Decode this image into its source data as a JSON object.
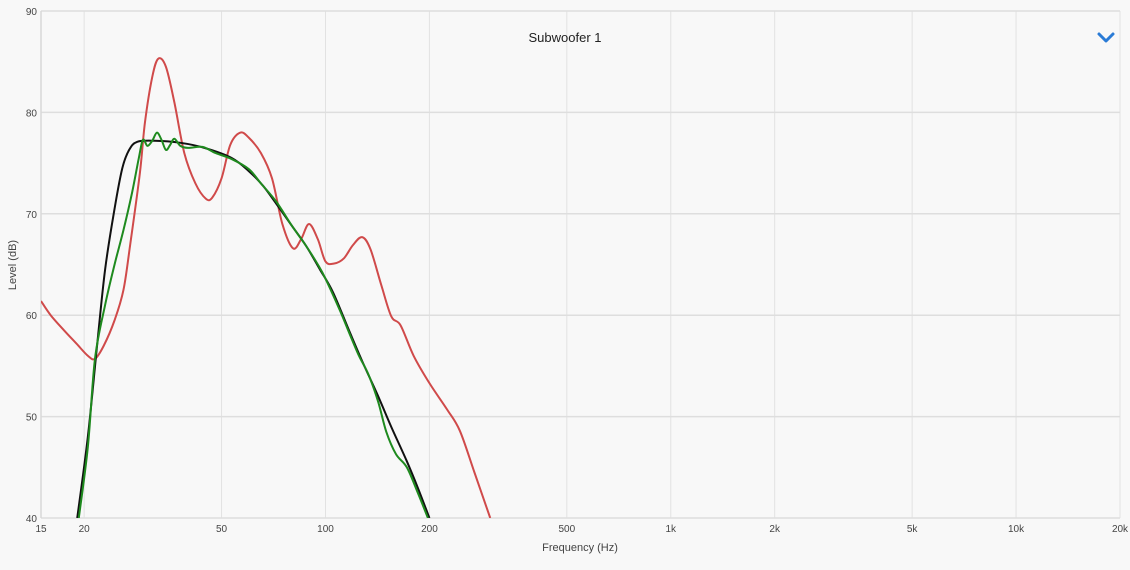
{
  "chart_data": {
    "type": "line",
    "title": "Subwoofer 1",
    "xlabel": "Frequency (Hz)",
    "ylabel": "Level (dB)",
    "xscale": "log",
    "xlim": [
      15,
      20000
    ],
    "ylim": [
      40,
      90
    ],
    "grid": true,
    "x_ticks": [
      {
        "v": 15,
        "label": "15"
      },
      {
        "v": 20,
        "label": "20"
      },
      {
        "v": 50,
        "label": "50"
      },
      {
        "v": 100,
        "label": "100"
      },
      {
        "v": 200,
        "label": "200"
      },
      {
        "v": 500,
        "label": "500"
      },
      {
        "v": 1000,
        "label": "1k"
      },
      {
        "v": 2000,
        "label": "2k"
      },
      {
        "v": 5000,
        "label": "5k"
      },
      {
        "v": 10000,
        "label": "10k"
      },
      {
        "v": 20000,
        "label": "20k"
      }
    ],
    "y_ticks": [
      40,
      50,
      60,
      70,
      80,
      90
    ],
    "series": [
      {
        "color": "#d04a4a",
        "points": [
          [
            15,
            61.4
          ],
          [
            16,
            60
          ],
          [
            17.5,
            58.5
          ],
          [
            19,
            57.2
          ],
          [
            20.5,
            56
          ],
          [
            21.5,
            55.7
          ],
          [
            22.8,
            57
          ],
          [
            24.5,
            59.5
          ],
          [
            26,
            62.5
          ],
          [
            27.2,
            67
          ],
          [
            29,
            74
          ],
          [
            30,
            79
          ],
          [
            31.5,
            83.5
          ],
          [
            32.8,
            85.3
          ],
          [
            34.5,
            84.5
          ],
          [
            36.5,
            81
          ],
          [
            39,
            76
          ],
          [
            42,
            73
          ],
          [
            45,
            71.5
          ],
          [
            47,
            71.6
          ],
          [
            50,
            73.5
          ],
          [
            53,
            76.8
          ],
          [
            56.6,
            78
          ],
          [
            60,
            77.5
          ],
          [
            65,
            76
          ],
          [
            70,
            73.5
          ],
          [
            75,
            69
          ],
          [
            80.5,
            66.6
          ],
          [
            85,
            67.5
          ],
          [
            89.6,
            69
          ],
          [
            95,
            67.5
          ],
          [
            100,
            65.3
          ],
          [
            106,
            65.1
          ],
          [
            113,
            65.6
          ],
          [
            120,
            66.9
          ],
          [
            127.7,
            67.7
          ],
          [
            135,
            66.5
          ],
          [
            145,
            63
          ],
          [
            155,
            59.9
          ],
          [
            165,
            59
          ],
          [
            180,
            56
          ],
          [
            200,
            53.3
          ],
          [
            225,
            50.7
          ],
          [
            245,
            48.6
          ],
          [
            270,
            44.5
          ],
          [
            300,
            40
          ]
        ]
      },
      {
        "color": "#111111",
        "points": [
          [
            19.1,
            40
          ],
          [
            20.5,
            48
          ],
          [
            21.8,
            57
          ],
          [
            23,
            64.5
          ],
          [
            24.5,
            70.5
          ],
          [
            25.8,
            74.5
          ],
          [
            27,
            76.3
          ],
          [
            28.5,
            77.1
          ],
          [
            32,
            77.2
          ],
          [
            38,
            77
          ],
          [
            44.6,
            76.5
          ],
          [
            53.5,
            75.5
          ],
          [
            60,
            74.2
          ],
          [
            65.8,
            72.8
          ],
          [
            72,
            71
          ],
          [
            79.6,
            68.9
          ],
          [
            88,
            66.8
          ],
          [
            96.4,
            64.5
          ],
          [
            105,
            62.3
          ],
          [
            117,
            58.5
          ],
          [
            128,
            55.4
          ],
          [
            141.7,
            52.1
          ],
          [
            155,
            49
          ],
          [
            171.5,
            45.7
          ],
          [
            185,
            43
          ],
          [
            200,
            40
          ]
        ]
      },
      {
        "color": "#1e8a1e",
        "points": [
          [
            19.3,
            40
          ],
          [
            20.5,
            47
          ],
          [
            21.5,
            55.7
          ],
          [
            23,
            61
          ],
          [
            24.5,
            65
          ],
          [
            26,
            68.4
          ],
          [
            27.5,
            72
          ],
          [
            28.8,
            75.5
          ],
          [
            29.6,
            77.3
          ],
          [
            30.5,
            76.7
          ],
          [
            31.5,
            77.2
          ],
          [
            32.5,
            78
          ],
          [
            33.5,
            77.3
          ],
          [
            34.5,
            76.3
          ],
          [
            35.5,
            76.8
          ],
          [
            36.5,
            77.4
          ],
          [
            38,
            76.7
          ],
          [
            40,
            76.5
          ],
          [
            44,
            76.6
          ],
          [
            48,
            76
          ],
          [
            53.5,
            75.4
          ],
          [
            60,
            74.4
          ],
          [
            65,
            73
          ],
          [
            72,
            71.2
          ],
          [
            80,
            68.8
          ],
          [
            88,
            66.8
          ],
          [
            95,
            65
          ],
          [
            100,
            63.6
          ],
          [
            110,
            60.5
          ],
          [
            117,
            58.3
          ],
          [
            125,
            56
          ],
          [
            133,
            54.2
          ],
          [
            142,
            51.5
          ],
          [
            150,
            48.5
          ],
          [
            160,
            46.3
          ],
          [
            172,
            45
          ],
          [
            185,
            42.5
          ],
          [
            198,
            40
          ]
        ]
      }
    ]
  },
  "header": {
    "dropdown_icon": "chevron-down-icon",
    "accent": "#2a7bd6"
  }
}
